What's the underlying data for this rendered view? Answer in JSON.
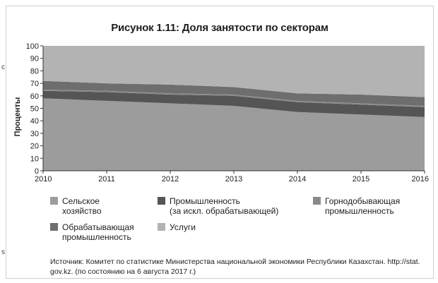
{
  "title": "Рисунок 1.11: Доля занятости по секторам",
  "chart_data": {
    "type": "area",
    "title": "Рисунок 1.11: Доля занятости по секторам",
    "ylabel": "Проценты",
    "xlabel": "",
    "x": [
      "2010",
      "2011",
      "2012",
      "2013",
      "2014",
      "2015",
      "2016"
    ],
    "ylim": [
      0,
      100
    ],
    "yticks": [
      0,
      10,
      20,
      30,
      40,
      50,
      60,
      70,
      80,
      90,
      100
    ],
    "grid": false,
    "legend_position": "bottom",
    "series": [
      {
        "name": "Сельское хозяйство",
        "values": [
          58,
          56,
          54,
          52,
          47,
          45,
          43
        ],
        "color": "#9c9c9c"
      },
      {
        "name": "Промышленность (за искл. обрабатывающей)",
        "values": [
          6,
          7,
          7,
          8,
          8,
          8,
          8
        ],
        "color": "#555555"
      },
      {
        "name": "Горнодобывающая промышленность",
        "values": [
          1,
          1,
          1,
          1,
          1,
          1,
          1
        ],
        "color": "#8a8a8a"
      },
      {
        "name": "Обрабатывающая промышленность",
        "values": [
          7,
          6,
          7,
          6,
          6,
          7,
          7
        ],
        "color": "#6e6e6e"
      },
      {
        "name": "Услуги",
        "values": [
          28,
          30,
          31,
          33,
          38,
          39,
          41
        ],
        "color": "#b3b3b3"
      }
    ]
  },
  "legend": [
    {
      "line1": "Сельское",
      "line2": "хозяйство",
      "color": "#9c9c9c"
    },
    {
      "line1": "Промышленность",
      "line2": "(за искл. обрабатывающей)",
      "color": "#555555"
    },
    {
      "line1": "Горнодобывающая",
      "line2": "промышленность",
      "color": "#8a8a8a"
    },
    {
      "line1": "Обрабатывающая",
      "line2": "промышленность",
      "color": "#6e6e6e"
    },
    {
      "line1": "Услуги",
      "line2": "",
      "color": "#b3b3b3"
    }
  ],
  "source": {
    "line1": "Источник: Комитет по статистике Министерства национальной экономики Республики Казахстан. http://stat.",
    "line2": "gov.kz. (по состоянию на 6 августа 2017 г.)"
  },
  "edge_marks": [
    "с",
    "s"
  ]
}
